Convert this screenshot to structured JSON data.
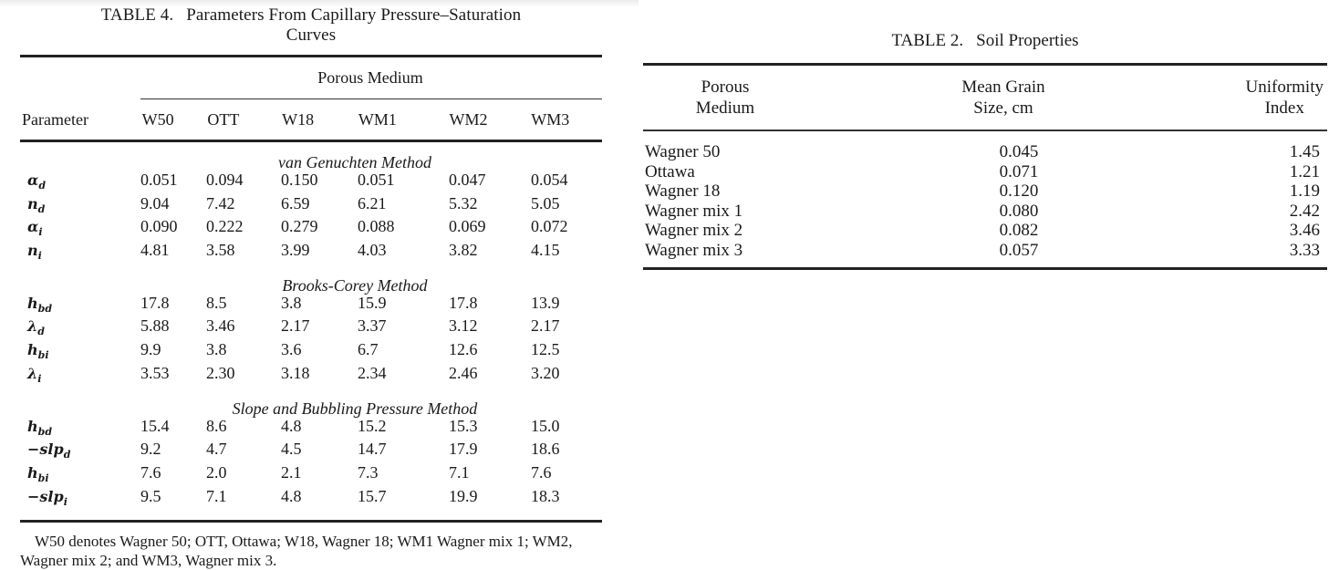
{
  "table4": {
    "label": "TABLE 4.",
    "title": "Parameters From Capillary Pressure–Saturation Curves",
    "title_line1": "Parameters From Capillary Pressure–Saturation",
    "title_line2": "Curves",
    "group_header": "Porous Medium",
    "columns": [
      "Parameter",
      "W50",
      "OTT",
      "W18",
      "WM1",
      "WM2",
      "WM3"
    ],
    "sections": [
      {
        "title": "van Genuchten Method",
        "rows": [
          {
            "symbol": "α",
            "sub": "d",
            "values": [
              "0.051",
              "0.094",
              "0.150",
              "0.051",
              "0.047",
              "0.054"
            ]
          },
          {
            "symbol": "n",
            "sub": "d",
            "values": [
              "9.04",
              "7.42",
              "6.59",
              "6.21",
              "5.32",
              "5.05"
            ]
          },
          {
            "symbol": "α",
            "sub": "i",
            "values": [
              "0.090",
              "0.222",
              "0.279",
              "0.088",
              "0.069",
              "0.072"
            ]
          },
          {
            "symbol": "n",
            "sub": "i",
            "values": [
              "4.81",
              "3.58",
              "3.99",
              "4.03",
              "3.82",
              "4.15"
            ]
          }
        ]
      },
      {
        "title": "Brooks-Corey Method",
        "rows": [
          {
            "symbol": "h",
            "sub": "bd",
            "values": [
              "17.8",
              "8.5",
              "3.8",
              "15.9",
              "17.8",
              "13.9"
            ]
          },
          {
            "symbol": "λ",
            "sub": "d",
            "values": [
              "5.88",
              "3.46",
              "2.17",
              "3.37",
              "3.12",
              "2.17"
            ]
          },
          {
            "symbol": "h",
            "sub": "bi",
            "values": [
              "9.9",
              "3.8",
              "3.6",
              "6.7",
              "12.6",
              "12.5"
            ]
          },
          {
            "symbol": "λ",
            "sub": "i",
            "values": [
              "3.53",
              "2.30",
              "3.18",
              "2.34",
              "2.46",
              "3.20"
            ]
          }
        ]
      },
      {
        "title": "Slope and Bubbling Pressure Method",
        "rows": [
          {
            "symbol": "h",
            "sub": "bd",
            "values": [
              "15.4",
              "8.6",
              "4.8",
              "15.2",
              "15.3",
              "15.0"
            ]
          },
          {
            "symbol": "−slp",
            "sub": "d",
            "values": [
              "9.2",
              "4.7",
              "4.5",
              "14.7",
              "17.9",
              "18.6"
            ]
          },
          {
            "symbol": "h",
            "sub": "bi",
            "values": [
              "7.6",
              "2.0",
              "2.1",
              "7.3",
              "7.1",
              "7.6"
            ]
          },
          {
            "symbol": "−slp",
            "sub": "i",
            "values": [
              "9.5",
              "7.1",
              "4.8",
              "15.7",
              "19.9",
              "18.3"
            ]
          }
        ]
      }
    ],
    "footnote": "W50 denotes Wagner 50; OTT, Ottawa; W18, Wagner 18; WM1 Wagner mix 1; WM2, Wagner mix 2; and WM3, Wagner mix 3."
  },
  "table2": {
    "label": "TABLE 2.",
    "title": "Soil Properties",
    "columns": [
      {
        "line1": "Porous",
        "line2": "Medium"
      },
      {
        "line1": "Mean Grain",
        "line2": "Size, cm"
      },
      {
        "line1": "Uniformity",
        "line2": "Index"
      }
    ],
    "rows": [
      {
        "medium": "Wagner 50",
        "grain_size": "0.045",
        "uniformity": "1.45"
      },
      {
        "medium": "Ottawa",
        "grain_size": "0.071",
        "uniformity": "1.21"
      },
      {
        "medium": "Wagner 18",
        "grain_size": "0.120",
        "uniformity": "1.19"
      },
      {
        "medium": "Wagner mix 1",
        "grain_size": "0.080",
        "uniformity": "2.42"
      },
      {
        "medium": "Wagner mix 2",
        "grain_size": "0.082",
        "uniformity": "3.46"
      },
      {
        "medium": "Wagner mix 3",
        "grain_size": "0.057",
        "uniformity": "3.33"
      }
    ]
  }
}
